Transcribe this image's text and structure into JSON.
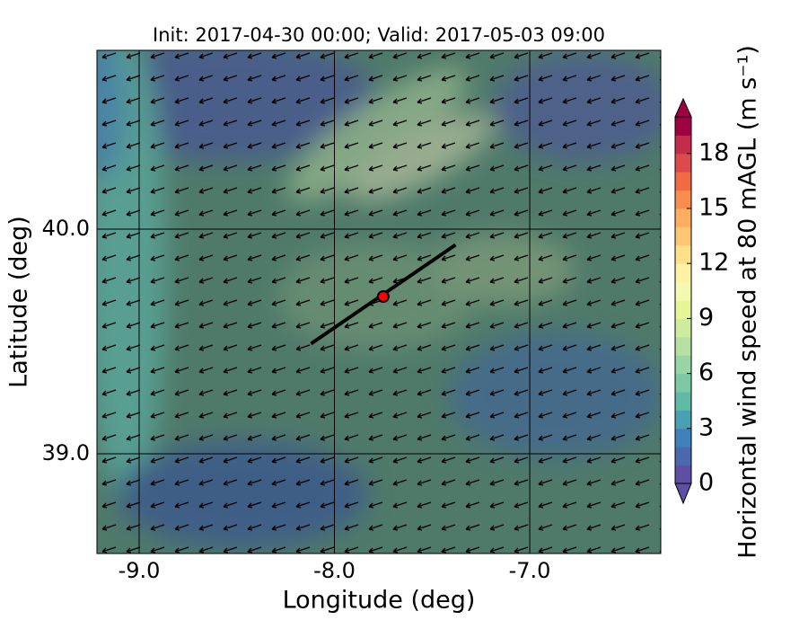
{
  "chart_data": {
    "type": "map",
    "title": "Init: 2017-04-30 00:00; Valid: 2017-05-03 09:00",
    "x_label": "Longitude (deg)",
    "y_label": "Latitude (deg)",
    "xlim": [
      -9.216,
      -6.329
    ],
    "ylim": [
      38.556,
      40.796
    ],
    "xticks": [
      {
        "value": -9,
        "label": "-9.0"
      },
      {
        "value": -8,
        "label": "-8.0"
      },
      {
        "value": -7,
        "label": "-7.0"
      }
    ],
    "yticks": [
      {
        "value": 39,
        "label": "39.0"
      },
      {
        "value": 40,
        "label": "40.0"
      }
    ],
    "grid": true,
    "marker": {
      "x": -7.75,
      "y": 39.7,
      "color": "#ff0000"
    },
    "transect": {
      "x": [
        -8.12,
        -7.38
      ],
      "y": [
        39.49,
        39.93
      ],
      "color": "#000000"
    },
    "colorbar": {
      "label": "Horizontal wind speed at 80 mAGL (m s⁻¹)",
      "clim": [
        0,
        20
      ],
      "ticks": [
        0,
        3,
        6,
        9,
        12,
        15,
        18
      ],
      "colors": [
        "#5e4fa2",
        "#4a68ad",
        "#3f82b9",
        "#4b9fb4",
        "#5fbaa8",
        "#7ccaa5",
        "#99d5a4",
        "#b5e0a2",
        "#cfeb9d",
        "#e6f598",
        "#f3fab0",
        "#fdf1a6",
        "#fee08b",
        "#fdc776",
        "#fdae61",
        "#f88d52",
        "#f06a44",
        "#dc4a4c",
        "#c42d4a",
        "#9e0142"
      ]
    }
  }
}
